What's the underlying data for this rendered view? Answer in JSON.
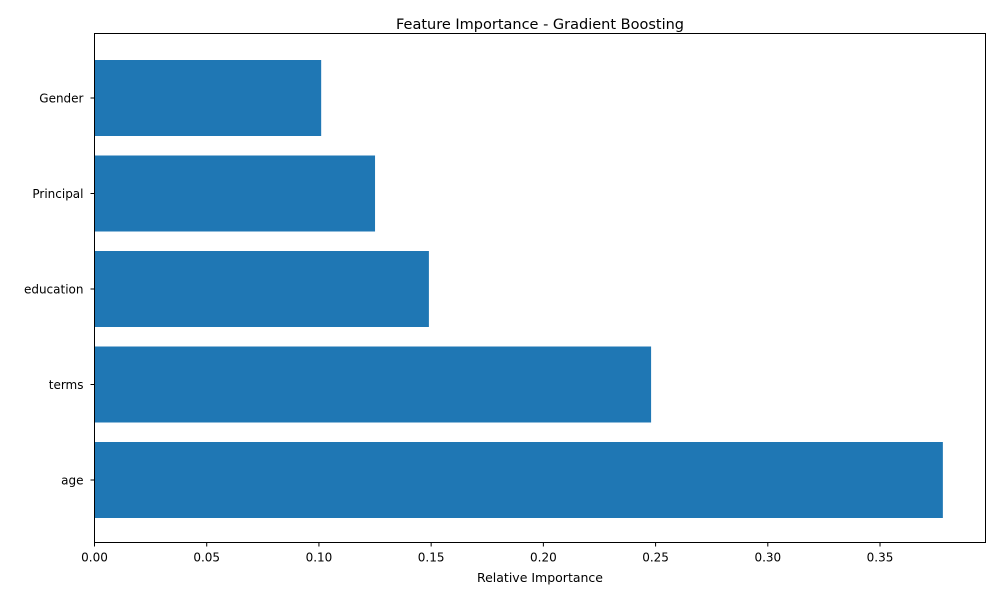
{
  "chart_data": {
    "type": "bar",
    "orientation": "horizontal",
    "title": "Feature Importance - Gradient Boosting",
    "xlabel": "Relative Importance",
    "ylabel": "",
    "categories": [
      "age",
      "terms",
      "education",
      "Principal",
      "Gender"
    ],
    "values": [
      0.378,
      0.248,
      0.149,
      0.125,
      0.101
    ],
    "xlim": [
      0.0,
      0.397
    ],
    "xticks": [
      "0.00",
      "0.05",
      "0.10",
      "0.15",
      "0.20",
      "0.25",
      "0.30",
      "0.35"
    ],
    "grid": false,
    "legend": "none",
    "bar_color": "#1f77b4"
  }
}
